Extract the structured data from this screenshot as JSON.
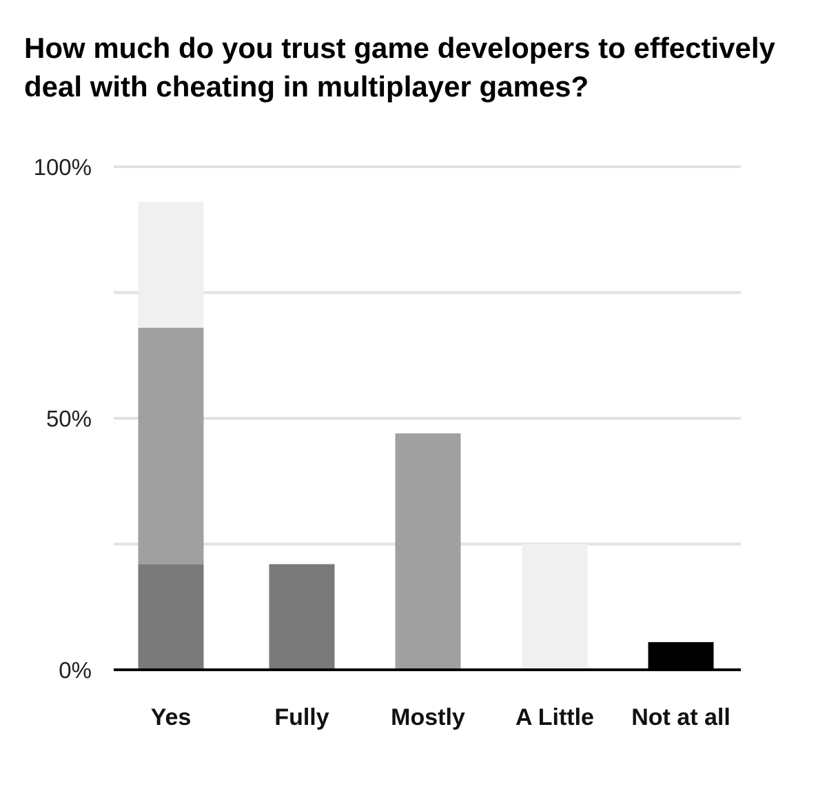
{
  "chart_data": {
    "type": "bar",
    "title": "How much do you trust game developers to effectively deal with cheating in multiplayer games?",
    "xlabel": "",
    "ylabel": "",
    "ylim": [
      0,
      100
    ],
    "grid": true,
    "legend": "none",
    "yticks": [
      {
        "value": 0,
        "label": "0%"
      },
      {
        "value": 25,
        "label": ""
      },
      {
        "value": 50,
        "label": "50%"
      },
      {
        "value": 75,
        "label": ""
      },
      {
        "value": 100,
        "label": "100%"
      }
    ],
    "categories": [
      "Yes",
      "Fully",
      "Mostly",
      "A Little",
      "Not at all"
    ],
    "stacked": true,
    "series": [
      {
        "color": "#7a7a7a",
        "values": [
          21,
          21,
          0,
          0,
          0
        ]
      },
      {
        "color": "#a0a0a0",
        "values": [
          47,
          0,
          47,
          0,
          0
        ]
      },
      {
        "color": "#f0f0f0",
        "values": [
          25,
          0,
          0,
          25,
          0
        ]
      },
      {
        "color": "#000000",
        "values": [
          0,
          0,
          0,
          0,
          5.5
        ]
      }
    ]
  }
}
